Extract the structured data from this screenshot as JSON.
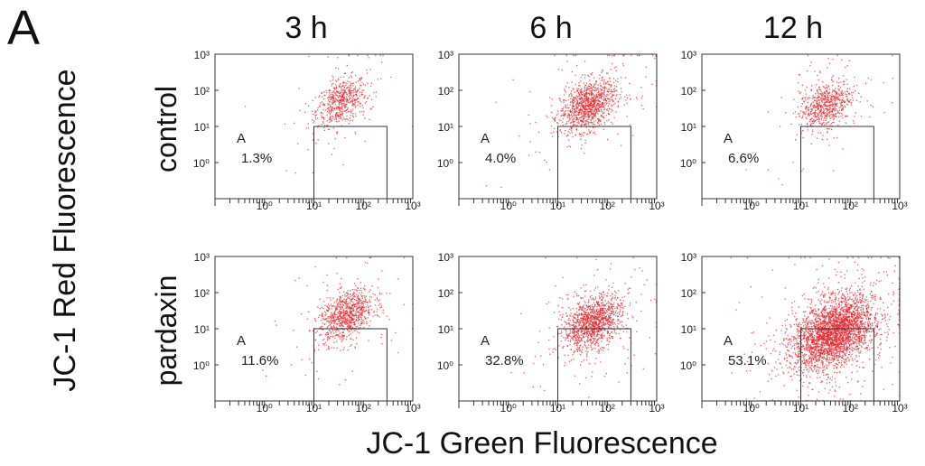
{
  "panel_letter": "A",
  "columns": [
    "3 h",
    "6 h",
    "12 h"
  ],
  "rows": [
    "control",
    "pardaxin"
  ],
  "ylabel": "JC-1 Red Fluorescence",
  "xlabel": "JC-1 Green Fluorescence",
  "colors": {
    "dots": "#e8262b",
    "frame": "#333333"
  },
  "chart_data": [
    {
      "type": "scatter",
      "row": "control",
      "column": "3 h",
      "region_label": "A",
      "region_percent": "1.3%",
      "xlim": [
        0.1,
        1000
      ],
      "ylim": [
        0.1,
        1000
      ],
      "log_scale": true,
      "x_ticks": [
        "10⁰",
        "10¹",
        "10²",
        "10³"
      ],
      "y_ticks": [
        "10⁰",
        "10¹",
        "10²",
        "10³"
      ],
      "gate_x": [
        10,
        300
      ],
      "gate_y": [
        0.1,
        10
      ],
      "cluster_center": [
        35,
        50
      ],
      "points": 600
    },
    {
      "type": "scatter",
      "row": "control",
      "column": "6 h",
      "region_label": "A",
      "region_percent": "4.0%",
      "xlim": [
        0.1,
        1000
      ],
      "ylim": [
        0.1,
        1000
      ],
      "log_scale": true,
      "x_ticks": [
        "10⁰",
        "10¹",
        "10²",
        "10³"
      ],
      "y_ticks": [
        "10⁰",
        "10¹",
        "10²",
        "10³"
      ],
      "gate_x": [
        10,
        300
      ],
      "gate_y": [
        0.1,
        10
      ],
      "cluster_center": [
        40,
        40
      ],
      "points": 1100
    },
    {
      "type": "scatter",
      "row": "control",
      "column": "12 h",
      "region_label": "A",
      "region_percent": "6.6%",
      "xlim": [
        0.1,
        1000
      ],
      "ylim": [
        0.1,
        1000
      ],
      "log_scale": true,
      "x_ticks": [
        "10⁰",
        "10¹",
        "10²",
        "10³"
      ],
      "y_ticks": [
        "10⁰",
        "10¹",
        "10²",
        "10³"
      ],
      "gate_x": [
        10,
        300
      ],
      "gate_y": [
        0.1,
        10
      ],
      "cluster_center": [
        30,
        40
      ],
      "points": 700
    },
    {
      "type": "scatter",
      "row": "pardaxin",
      "column": "3 h",
      "region_label": "A",
      "region_percent": "11.6%",
      "xlim": [
        0.1,
        1000
      ],
      "ylim": [
        0.1,
        1000
      ],
      "log_scale": true,
      "x_ticks": [
        "10⁰",
        "10¹",
        "10²",
        "10³"
      ],
      "y_ticks": [
        "10⁰",
        "10¹",
        "10²",
        "10³"
      ],
      "gate_x": [
        10,
        300
      ],
      "gate_y": [
        0.1,
        10
      ],
      "cluster_center": [
        45,
        25
      ],
      "points": 900
    },
    {
      "type": "scatter",
      "row": "pardaxin",
      "column": "6 h",
      "region_label": "A",
      "region_percent": "32.8%",
      "xlim": [
        0.1,
        1000
      ],
      "ylim": [
        0.1,
        1000
      ],
      "log_scale": true,
      "x_ticks": [
        "10⁰",
        "10¹",
        "10²",
        "10³"
      ],
      "y_ticks": [
        "10⁰",
        "10¹",
        "10²",
        "10³"
      ],
      "gate_x": [
        10,
        300
      ],
      "gate_y": [
        0.1,
        10
      ],
      "cluster_center": [
        50,
        15
      ],
      "points": 1300
    },
    {
      "type": "scatter",
      "row": "pardaxin",
      "column": "12 h",
      "region_label": "A",
      "region_percent": "53.1%",
      "xlim": [
        0.1,
        1000
      ],
      "ylim": [
        0.1,
        1000
      ],
      "log_scale": true,
      "x_ticks": [
        "10⁰",
        "10¹",
        "10²",
        "10³"
      ],
      "y_ticks": [
        "10⁰",
        "10¹",
        "10²",
        "10³"
      ],
      "gate_x": [
        10,
        300
      ],
      "gate_y": [
        0.1,
        10
      ],
      "cluster_center": [
        45,
        8
      ],
      "points": 3200
    }
  ]
}
